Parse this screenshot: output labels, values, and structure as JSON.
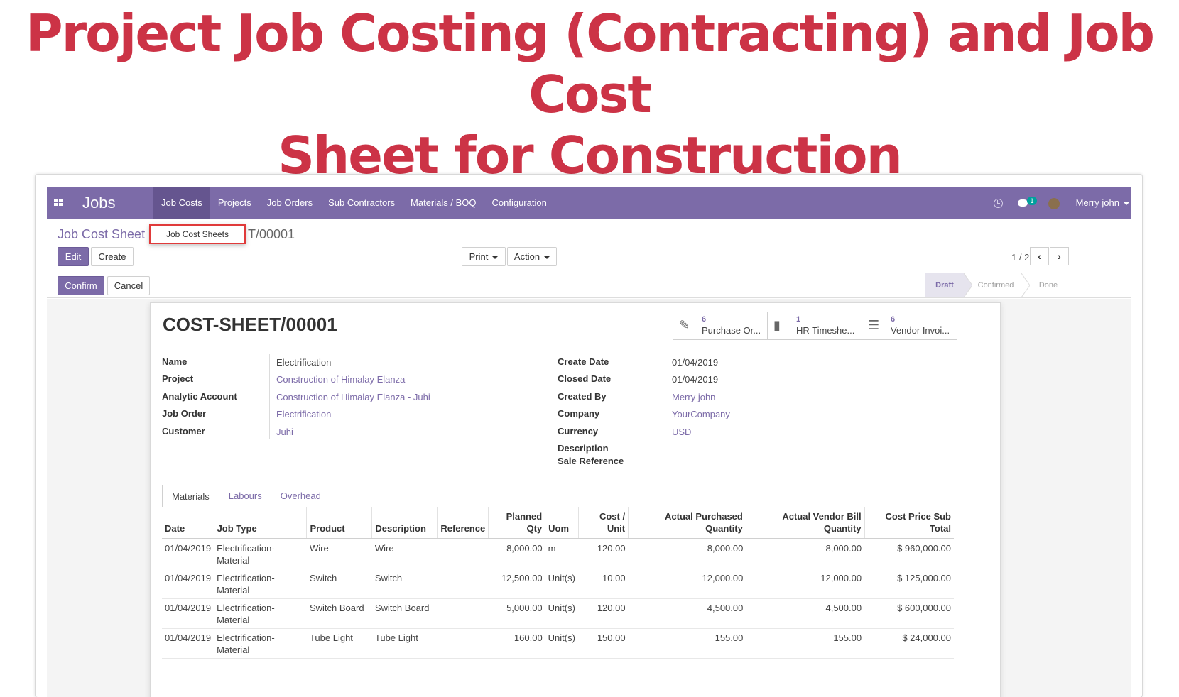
{
  "headline": {
    "line1": "Project Job Costing (Contracting) and Job Cost",
    "line2": "Sheet for Construction"
  },
  "navbar": {
    "brand": "Jobs",
    "menu": [
      "Job Costs",
      "Projects",
      "Job Orders",
      "Sub Contractors",
      "Materials / BOQ",
      "Configuration"
    ],
    "active_menu": "Job Costs",
    "chat_badge": "1",
    "user_name": "Merry john",
    "accent_color": "#7c6ba8",
    "icons": [
      "apps-icon",
      "clock-icon",
      "chat-icon",
      "avatar"
    ]
  },
  "dropdown": {
    "item": "Job Cost Sheets"
  },
  "breadcrumb": {
    "root": "Job Cost Sheet",
    "current_tail": "T/00001"
  },
  "buttons": {
    "edit": "Edit",
    "create": "Create",
    "print": "Print",
    "action": "Action",
    "confirm": "Confirm",
    "cancel": "Cancel"
  },
  "pager": {
    "value": "1 / 2",
    "prev": "‹",
    "next": "›"
  },
  "status": {
    "stages": [
      "Draft",
      "Confirmed",
      "Done"
    ],
    "current": "Draft"
  },
  "sheet": {
    "title": "COST-SHEET/00001",
    "smart_buttons": [
      {
        "count": "6",
        "label": "Purchase Or...",
        "icon": "edit-icon"
      },
      {
        "count": "1",
        "label": "HR Timeshe...",
        "icon": "book-icon"
      },
      {
        "count": "6",
        "label": "Vendor Invoi...",
        "icon": "list-icon"
      }
    ],
    "left_fields": [
      {
        "label": "Name",
        "value": "Electrification",
        "link": false
      },
      {
        "label": "Project",
        "value": "Construction of Himalay Elanza",
        "link": true
      },
      {
        "label": "Analytic Account",
        "value": "Construction of Himalay Elanza - Juhi",
        "link": true
      },
      {
        "label": "Job Order",
        "value": "Electrification",
        "link": true
      },
      {
        "label": "Customer",
        "value": "Juhi",
        "link": true
      }
    ],
    "right_fields": [
      {
        "label": "Create Date",
        "value": "01/04/2019",
        "link": false
      },
      {
        "label": "Closed Date",
        "value": "01/04/2019",
        "link": false
      },
      {
        "label": "Created By",
        "value": "Merry john",
        "link": true
      },
      {
        "label": "Company",
        "value": "YourCompany",
        "link": true
      },
      {
        "label": "Currency",
        "value": "USD",
        "link": true
      },
      {
        "label": "Description",
        "value": "",
        "link": false
      },
      {
        "label": "Sale Reference",
        "value": "",
        "link": false
      }
    ],
    "tabs": [
      "Materials",
      "Labours",
      "Overhead"
    ],
    "active_tab": "Materials"
  },
  "table": {
    "headers": [
      "Date",
      "Job Type",
      "Product",
      "Description",
      "Reference",
      "Planned Qty",
      "Uom",
      "Cost / Unit",
      "Actual Purchased Quantity",
      "Actual Vendor Bill Quantity",
      "Cost Price Sub Total"
    ],
    "rows": [
      [
        "01/04/2019",
        "Electrification-Material",
        "Wire",
        "Wire",
        "",
        "8,000.00",
        "m",
        "120.00",
        "8,000.00",
        "8,000.00",
        "$ 960,000.00"
      ],
      [
        "01/04/2019",
        "Electrification-Material",
        "Switch",
        "Switch",
        "",
        "12,500.00",
        "Unit(s)",
        "10.00",
        "12,000.00",
        "12,000.00",
        "$ 125,000.00"
      ],
      [
        "01/04/2019",
        "Electrification-Material",
        "Switch Board",
        "Switch Board",
        "",
        "5,000.00",
        "Unit(s)",
        "120.00",
        "4,500.00",
        "4,500.00",
        "$ 600,000.00"
      ],
      [
        "01/04/2019",
        "Electrification-Material",
        "Tube Light",
        "Tube Light",
        "",
        "160.00",
        "Unit(s)",
        "150.00",
        "155.00",
        "155.00",
        "$ 24,000.00"
      ]
    ]
  }
}
